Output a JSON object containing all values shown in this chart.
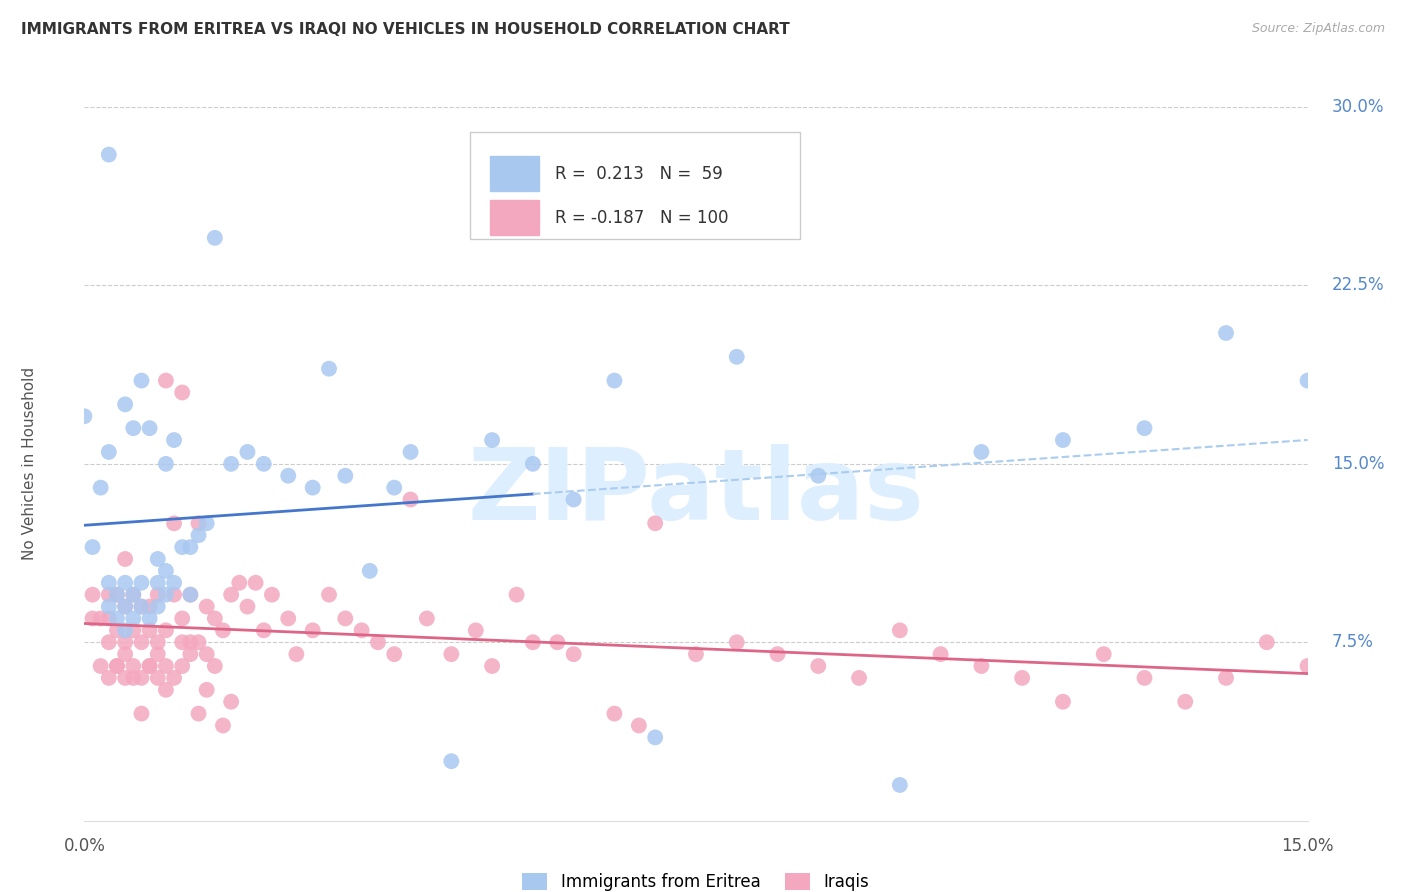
{
  "title": "IMMIGRANTS FROM ERITREA VS IRAQI NO VEHICLES IN HOUSEHOLD CORRELATION CHART",
  "source": "Source: ZipAtlas.com",
  "ylabel": "No Vehicles in Household",
  "xlim": [
    0.0,
    0.15
  ],
  "ylim": [
    0.0,
    0.3
  ],
  "yticks_right": [
    0.075,
    0.15,
    0.225,
    0.3
  ],
  "ytick_labels_right": [
    "7.5%",
    "15.0%",
    "22.5%",
    "30.0%"
  ],
  "grid_color": "#cccccc",
  "bg_color": "#ffffff",
  "blue_R": 0.213,
  "blue_N": 59,
  "pink_R": -0.187,
  "pink_N": 100,
  "blue_color": "#a8c8f0",
  "pink_color": "#f4a8c0",
  "blue_line_color": "#4477cc",
  "pink_line_color": "#dd6688",
  "blue_line_solid_end": 0.055,
  "watermark": "ZIPatlas",
  "watermark_color": "#ddeeff",
  "legend_label_blue": "Immigrants from Eritrea",
  "legend_label_pink": "Iraqis",
  "blue_x": [
    0.0,
    0.001,
    0.002,
    0.003,
    0.003,
    0.003,
    0.004,
    0.004,
    0.005,
    0.005,
    0.005,
    0.005,
    0.006,
    0.006,
    0.006,
    0.007,
    0.007,
    0.007,
    0.008,
    0.008,
    0.009,
    0.009,
    0.009,
    0.01,
    0.01,
    0.01,
    0.011,
    0.011,
    0.012,
    0.013,
    0.013,
    0.014,
    0.015,
    0.016,
    0.018,
    0.02,
    0.022,
    0.025,
    0.028,
    0.03,
    0.032,
    0.035,
    0.038,
    0.04,
    0.045,
    0.05,
    0.055,
    0.06,
    0.065,
    0.07,
    0.08,
    0.09,
    0.1,
    0.11,
    0.12,
    0.13,
    0.14,
    0.15,
    0.003
  ],
  "blue_y": [
    0.17,
    0.115,
    0.14,
    0.09,
    0.1,
    0.155,
    0.085,
    0.095,
    0.08,
    0.09,
    0.1,
    0.175,
    0.085,
    0.095,
    0.165,
    0.09,
    0.1,
    0.185,
    0.085,
    0.165,
    0.09,
    0.1,
    0.11,
    0.095,
    0.105,
    0.15,
    0.1,
    0.16,
    0.115,
    0.095,
    0.115,
    0.12,
    0.125,
    0.245,
    0.15,
    0.155,
    0.15,
    0.145,
    0.14,
    0.19,
    0.145,
    0.105,
    0.14,
    0.155,
    0.025,
    0.16,
    0.15,
    0.135,
    0.185,
    0.035,
    0.195,
    0.145,
    0.015,
    0.155,
    0.16,
    0.165,
    0.205,
    0.185,
    0.28
  ],
  "pink_x": [
    0.001,
    0.001,
    0.002,
    0.002,
    0.003,
    0.003,
    0.003,
    0.004,
    0.004,
    0.004,
    0.005,
    0.005,
    0.005,
    0.005,
    0.006,
    0.006,
    0.006,
    0.007,
    0.007,
    0.007,
    0.008,
    0.008,
    0.008,
    0.009,
    0.009,
    0.009,
    0.01,
    0.01,
    0.01,
    0.011,
    0.011,
    0.012,
    0.012,
    0.012,
    0.013,
    0.013,
    0.014,
    0.014,
    0.015,
    0.015,
    0.016,
    0.017,
    0.018,
    0.019,
    0.02,
    0.021,
    0.022,
    0.023,
    0.025,
    0.026,
    0.028,
    0.03,
    0.032,
    0.034,
    0.036,
    0.038,
    0.04,
    0.042,
    0.045,
    0.048,
    0.05,
    0.053,
    0.055,
    0.058,
    0.06,
    0.065,
    0.068,
    0.07,
    0.075,
    0.08,
    0.085,
    0.09,
    0.095,
    0.1,
    0.105,
    0.11,
    0.115,
    0.12,
    0.125,
    0.13,
    0.135,
    0.14,
    0.145,
    0.15,
    0.003,
    0.004,
    0.005,
    0.006,
    0.007,
    0.008,
    0.009,
    0.01,
    0.011,
    0.012,
    0.013,
    0.014,
    0.015,
    0.016,
    0.017,
    0.018
  ],
  "pink_y": [
    0.085,
    0.095,
    0.065,
    0.085,
    0.075,
    0.085,
    0.095,
    0.065,
    0.08,
    0.095,
    0.06,
    0.075,
    0.09,
    0.11,
    0.065,
    0.08,
    0.095,
    0.06,
    0.075,
    0.09,
    0.065,
    0.08,
    0.09,
    0.06,
    0.075,
    0.095,
    0.065,
    0.08,
    0.185,
    0.095,
    0.125,
    0.075,
    0.085,
    0.18,
    0.075,
    0.095,
    0.075,
    0.125,
    0.07,
    0.09,
    0.085,
    0.08,
    0.095,
    0.1,
    0.09,
    0.1,
    0.08,
    0.095,
    0.085,
    0.07,
    0.08,
    0.095,
    0.085,
    0.08,
    0.075,
    0.07,
    0.135,
    0.085,
    0.07,
    0.08,
    0.065,
    0.095,
    0.075,
    0.075,
    0.07,
    0.045,
    0.04,
    0.125,
    0.07,
    0.075,
    0.07,
    0.065,
    0.06,
    0.08,
    0.07,
    0.065,
    0.06,
    0.05,
    0.07,
    0.06,
    0.05,
    0.06,
    0.075,
    0.065,
    0.06,
    0.065,
    0.07,
    0.06,
    0.045,
    0.065,
    0.07,
    0.055,
    0.06,
    0.065,
    0.07,
    0.045,
    0.055,
    0.065,
    0.04,
    0.05
  ]
}
